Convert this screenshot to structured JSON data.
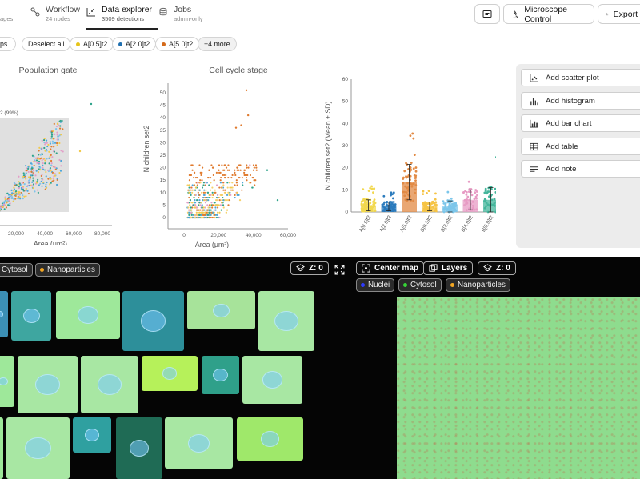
{
  "nav": {
    "tabs": [
      {
        "title": "",
        "sub": "ages"
      },
      {
        "title": "Workflow",
        "sub": "24 nodes"
      },
      {
        "title": "Data explorer",
        "sub": "3509 detections"
      },
      {
        "title": "Jobs",
        "sub": "admin-only"
      }
    ],
    "microscope_label": "Microscope Control",
    "export_label": "Export"
  },
  "toolbar": {
    "ps_label": "ps",
    "deselect_label": "Deselect all",
    "filters": [
      {
        "label": "A[0.5]t2",
        "color": "#e6c419"
      },
      {
        "label": "A[2.0]t2",
        "color": "#1f6fb0"
      },
      {
        "label": "A[5.0]t2",
        "color": "#d46a1a"
      }
    ],
    "more_label": "+4 more"
  },
  "chart_data": [
    {
      "type": "scatter",
      "title": "Population gate",
      "xlabel": "Area (μm²)",
      "ylabel": "",
      "x_ticks": [
        "20,000",
        "40,000",
        "60,000",
        "80,000"
      ],
      "gate_label": "2 (99%)",
      "xlim": [
        0,
        80000
      ]
    },
    {
      "type": "scatter",
      "title": "Cell cycle stage",
      "xlabel": "Area (μm²)",
      "ylabel": "N children set2",
      "x_ticks": [
        "0",
        "20,000",
        "40,000",
        "60,000"
      ],
      "y_ticks": [
        "0",
        "5",
        "10",
        "15",
        "20",
        "25",
        "30",
        "35",
        "40",
        "45",
        "50"
      ],
      "xlim": [
        0,
        60000
      ],
      "ylim": [
        0,
        50
      ]
    },
    {
      "type": "bar",
      "title": "",
      "xlabel": "",
      "ylabel": "N children set2 (Mean ± SD)",
      "categories": [
        "A[0.5]t2",
        "A[2.0]t2",
        "A[5.0]t2",
        "B[0.5]t2",
        "B[2.0]t2",
        "B[4.0]t2",
        "B[5.0]t2"
      ],
      "values": [
        3,
        2.5,
        13.5,
        2.5,
        2.5,
        5.5,
        5.5
      ],
      "sd": [
        2.5,
        2,
        8,
        2,
        2.5,
        4.5,
        5.5
      ],
      "colors": [
        "#f2d84f",
        "#2b7bbd",
        "#e28a44",
        "#f6c445",
        "#7cc6ea",
        "#e79bc4",
        "#44b59b"
      ],
      "y_ticks": [
        "0",
        "10",
        "20",
        "30",
        "40",
        "50",
        "60"
      ],
      "ylim": [
        0,
        60
      ]
    }
  ],
  "panel": {
    "buttons": [
      {
        "label": "Add scatter plot",
        "icon": "scatter-icon"
      },
      {
        "label": "Add histogram",
        "icon": "histogram-icon"
      },
      {
        "label": "Add bar chart",
        "icon": "bar-chart-icon"
      },
      {
        "label": "Add table",
        "icon": "table-icon"
      },
      {
        "label": "Add note",
        "icon": "note-icon"
      }
    ]
  },
  "bottom": {
    "left_channels": [
      {
        "label": "Cytosol",
        "color": ""
      },
      {
        "label": "Nanoparticles",
        "color": "#f2a623"
      }
    ],
    "z_label": "Z: 0",
    "center_map_label": "Center map",
    "layers_label": "Layers",
    "z_right_label": "Z: 0",
    "map_channels": [
      {
        "label": "Nuclei",
        "color": "#2f3bff"
      },
      {
        "label": "Cytosol",
        "color": "#36d436"
      },
      {
        "label": "Nanoparticles",
        "color": "#f2a623"
      }
    ]
  }
}
